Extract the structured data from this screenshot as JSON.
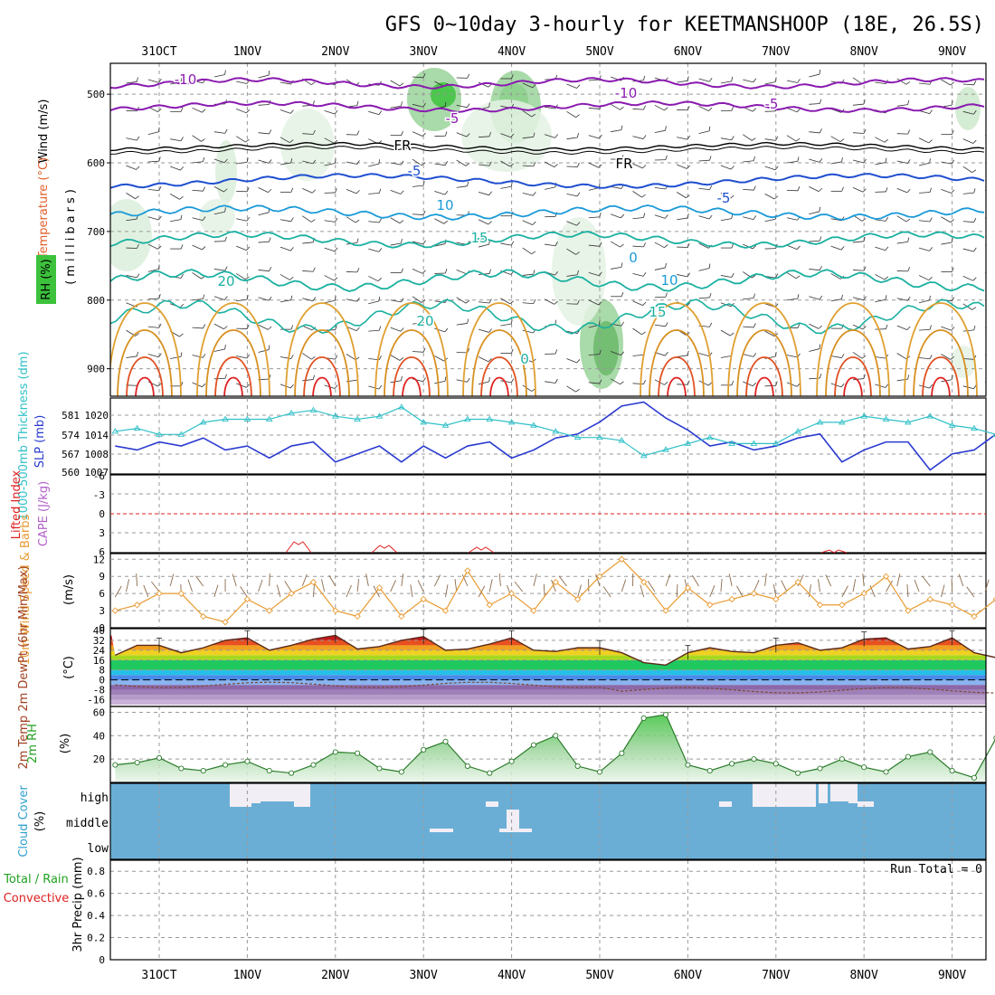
{
  "title": "GFS 0~10day 3-hourly for KEETMANSHOOP (18E, 26.5S)",
  "dates": [
    "31OCT",
    "1NOV",
    "2NOV",
    "3NOV",
    "4NOV",
    "5NOV",
    "6NOV",
    "7NOV",
    "8NOV",
    "9NOV"
  ],
  "run_total": "Run Total = 0",
  "colors": {
    "wind_purple": "#8a1ab0",
    "temp_blue": "#1f4fd0",
    "temp_cyan": "#1a9ad8",
    "temp_teal": "#1ab0a0",
    "temp_orange": "#e0a030",
    "temp_red": "#e02020",
    "rh_green": "#3cc23c",
    "slp_blue": "#2a3ad0",
    "thick_cyan": "#30c0c8",
    "wind_orange": "#e89a30",
    "cloud_blue": "#6aaed6",
    "precip_green": "#20a020"
  },
  "panels": {
    "upper": {
      "ylabels": [
        "Wind (m/s)",
        "Temperature (°C)",
        "(millibars)",
        "RH (%)"
      ],
      "yticks": [
        "500",
        "600",
        "700",
        "800",
        "900"
      ],
      "isotherm_labels": [
        "-10",
        "-10",
        "-5",
        "-5",
        "FR",
        "FR",
        "-5",
        "-5",
        "10",
        "15",
        "0",
        "10",
        "20",
        "20",
        "15",
        "0"
      ]
    },
    "slp": {
      "ylabel_left": "1000-500mb Thickness (dm)",
      "ylabel_right": "SLP (mb)",
      "yticks_thick": [
        "581",
        "574",
        "567",
        "560"
      ],
      "yticks_slp": [
        "1020",
        "1014",
        "1008",
        "1007"
      ]
    },
    "cape": {
      "ylabel_left": "Lifted Index",
      "ylabel_right": "CAPE (J/kg)",
      "yticks": [
        "-6",
        "-3",
        "0",
        "3",
        "6"
      ]
    },
    "wind10": {
      "ylabel": "10m Wind Speed & Barbs",
      "unit": "(m/s)",
      "yticks": [
        "12",
        "9",
        "6",
        "3",
        "0"
      ]
    },
    "temp2m": {
      "ylabel": "2m Temp 2m DewPt (6hr Min/Max)",
      "unit": "(°C)",
      "yticks": [
        "40",
        "32",
        "24",
        "16",
        "8",
        "0",
        "-8",
        "-16"
      ]
    },
    "rh2m": {
      "ylabel": "2m RH",
      "unit": "(%)",
      "yticks": [
        "60",
        "40",
        "20"
      ]
    },
    "cloud": {
      "ylabel": "Cloud Cover",
      "unit": "(%)",
      "levels": [
        "high",
        "middle",
        "low"
      ]
    },
    "precip": {
      "ylabel_a": "Total / Rain",
      "ylabel_b": "Convective",
      "ylabel_c": "3hr Precip (mm)",
      "yticks": [
        "0.8",
        "0.6",
        "0.4",
        "0.2",
        "0"
      ]
    }
  },
  "chart_data": [
    {
      "type": "line",
      "name": "SLP (mb)",
      "x_unit": "3-hourly steps from 31OCT 00Z (0..80)",
      "x": [
        0,
        2,
        4,
        6,
        8,
        10,
        12,
        14,
        16,
        18,
        20,
        22,
        24,
        26,
        28,
        30,
        32,
        34,
        36,
        38,
        40,
        42,
        44,
        46,
        48,
        50,
        52,
        54,
        56,
        58,
        60,
        62,
        64,
        66,
        68,
        70,
        72,
        74,
        76,
        78,
        80
      ],
      "values": [
        1012,
        1011,
        1013,
        1012,
        1014,
        1011,
        1012,
        1009,
        1012,
        1013,
        1008,
        1010,
        1012,
        1008,
        1012,
        1009,
        1012,
        1013,
        1009,
        1011,
        1014,
        1015,
        1018,
        1022,
        1023,
        1019,
        1016,
        1012,
        1013,
        1011,
        1012,
        1014,
        1015,
        1008,
        1011,
        1013,
        1013,
        1006,
        1010,
        1011,
        1015
      ],
      "ylim": [
        1005,
        1024
      ]
    },
    {
      "type": "line",
      "name": "1000-500mb Thickness (dm)",
      "x": [
        0,
        2,
        4,
        6,
        8,
        10,
        12,
        14,
        16,
        18,
        20,
        22,
        24,
        26,
        28,
        30,
        32,
        34,
        36,
        38,
        40,
        42,
        44,
        46,
        48,
        50,
        52,
        54,
        56,
        58,
        60,
        62,
        64,
        66,
        68,
        70,
        72,
        74,
        76,
        78,
        80
      ],
      "values": [
        574,
        575,
        573,
        573,
        577,
        578,
        578,
        578,
        580,
        581,
        579,
        578,
        579,
        582,
        577,
        576,
        578,
        578,
        577,
        576,
        574,
        572,
        572,
        571,
        566,
        568,
        570,
        572,
        570,
        570,
        570,
        574,
        577,
        577,
        579,
        578,
        577,
        579,
        576,
        575,
        573
      ],
      "ylim": [
        560,
        585
      ]
    },
    {
      "type": "line",
      "name": "10m Wind Speed (m/s)",
      "x": [
        0,
        2,
        4,
        6,
        8,
        10,
        12,
        14,
        16,
        18,
        20,
        22,
        24,
        26,
        28,
        30,
        32,
        34,
        36,
        38,
        40,
        42,
        44,
        46,
        48,
        50,
        52,
        54,
        56,
        58,
        60,
        62,
        64,
        66,
        68,
        70,
        72,
        74,
        76,
        78,
        80
      ],
      "values": [
        3,
        4,
        6,
        6,
        2,
        1,
        5,
        3,
        6,
        8,
        3,
        2,
        7,
        2,
        5,
        3,
        10,
        4,
        6,
        3,
        8,
        5,
        9,
        12,
        8,
        3,
        7,
        4,
        5,
        6,
        5,
        8,
        4,
        4,
        6,
        9,
        3,
        5,
        4,
        2,
        5
      ],
      "ylim": [
        0,
        13
      ]
    },
    {
      "type": "line",
      "name": "2m Temp (°C)",
      "x": [
        0,
        2,
        4,
        6,
        8,
        10,
        12,
        14,
        16,
        18,
        20,
        22,
        24,
        26,
        28,
        30,
        32,
        34,
        36,
        38,
        40,
        42,
        44,
        46,
        48,
        50,
        52,
        54,
        56,
        58,
        60,
        62,
        64,
        66,
        68,
        70,
        72,
        74,
        76,
        78,
        80
      ],
      "values": [
        20,
        28,
        28,
        22,
        26,
        32,
        34,
        24,
        28,
        33,
        36,
        25,
        27,
        32,
        35,
        24,
        25,
        29,
        34,
        24,
        23,
        26,
        26,
        22,
        14,
        12,
        22,
        26,
        23,
        22,
        28,
        30,
        24,
        26,
        33,
        34,
        25,
        27,
        34,
        22,
        18
      ],
      "ylim": [
        -20,
        40
      ]
    },
    {
      "type": "area",
      "name": "2m RH (%)",
      "x": [
        0,
        2,
        4,
        6,
        8,
        10,
        12,
        14,
        16,
        18,
        20,
        22,
        24,
        26,
        28,
        30,
        32,
        34,
        36,
        38,
        40,
        42,
        44,
        46,
        48,
        50,
        52,
        54,
        56,
        58,
        60,
        62,
        64,
        66,
        68,
        70,
        72,
        74,
        76,
        78,
        80
      ],
      "values": [
        15,
        17,
        21,
        12,
        10,
        15,
        18,
        10,
        8,
        15,
        26,
        25,
        12,
        9,
        28,
        35,
        14,
        8,
        18,
        32,
        40,
        14,
        9,
        25,
        55,
        58,
        15,
        10,
        16,
        20,
        16,
        8,
        12,
        20,
        13,
        9,
        22,
        26,
        10,
        4,
        38
      ],
      "ylim": [
        0,
        65
      ]
    },
    {
      "type": "bar",
      "name": "3hr Precip (mm)",
      "x": [
        0,
        80
      ],
      "values": [
        0,
        0
      ],
      "ylim": [
        0,
        1
      ]
    }
  ]
}
